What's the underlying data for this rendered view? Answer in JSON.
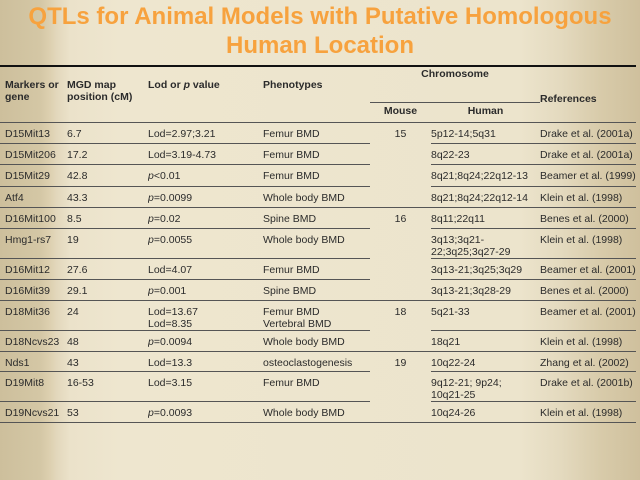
{
  "title": "QTLs for Animal Models with Putative Homologous Human Location",
  "headers": {
    "marker": "Markers or\ngene",
    "mgd": "MGD map\nposition (cM)",
    "lod_pre": "Lod or ",
    "lod_p": "p",
    "lod_post": " value",
    "phenotypes": "Phenotypes",
    "chromosome": "Chromosome",
    "mouse": "Mouse",
    "human": "Human",
    "references": "References"
  },
  "rows": [
    {
      "marker": "D15Mit13",
      "mgd": "6.7",
      "lod": "Lod=2.97;3.21",
      "p": false,
      "phenotype": "Femur BMD",
      "mouse": "15",
      "human": "5p12-14;5q31",
      "ref": "Drake et al. (2001a)"
    },
    {
      "marker": "D15Mit206",
      "mgd": "17.2",
      "lod": "Lod=3.19-4.73",
      "p": false,
      "phenotype": "Femur BMD",
      "mouse": "",
      "human": "8q22-23",
      "ref": "Drake et al. (2001a)"
    },
    {
      "marker": "D15Mit29",
      "mgd": "42.8",
      "lod": "<0.01",
      "p": true,
      "phenotype": "Femur BMD",
      "mouse": "",
      "human": "8q21;8q24;22q12-13",
      "ref": "Beamer et al. (1999)"
    },
    {
      "marker": "Atf4",
      "mgd": "43.3",
      "lod": "=0.0099",
      "p": true,
      "phenotype": "Whole body BMD",
      "mouse": "",
      "human": "8q21;8q24;22q12-14",
      "ref": "Klein et al. (1998)"
    },
    {
      "marker": "D16Mit100",
      "mgd": "8.5",
      "lod": "=0.02",
      "p": true,
      "phenotype": "Spine BMD",
      "mouse": "16",
      "human": "8q11;22q11",
      "ref": "Benes et al. (2000)"
    },
    {
      "marker": "Hmg1-rs7",
      "mgd": "19",
      "lod": "=0.0055",
      "p": true,
      "phenotype": "Whole body BMD",
      "mouse": "",
      "human": "3q13;3q21-\n22;3q25;3q27-29",
      "ref": "Klein et al. (1998)"
    },
    {
      "marker": "D16Mit12",
      "mgd": "27.6",
      "lod": "Lod=4.07",
      "p": false,
      "phenotype": "Femur BMD",
      "mouse": "",
      "human": "3q13-21;3q25;3q29",
      "ref": "Beamer et al. (2001)"
    },
    {
      "marker": "D16Mit39",
      "mgd": "29.1",
      "lod": "=0.001",
      "p": true,
      "phenotype": "Spine BMD",
      "mouse": "",
      "human": "3q13-21;3q28-29",
      "ref": "Benes et al. (2000)"
    },
    {
      "marker": "D18Mit36",
      "mgd": "24",
      "lod": "Lod=13.67\nLod=8.35",
      "p": false,
      "phenotype": "Femur BMD\nVertebral BMD",
      "mouse": "18",
      "human": "5q21-33",
      "ref": "Beamer et al. (2001)"
    },
    {
      "marker": "D18Ncvs23",
      "mgd": "48",
      "lod": "=0.0094",
      "p": true,
      "phenotype": "Whole body BMD",
      "mouse": "",
      "human": "18q21",
      "ref": "Klein et al. (1998)"
    },
    {
      "marker": "Nds1",
      "mgd": "43",
      "lod": "Lod=13.3",
      "p": false,
      "phenotype": "osteoclastogenesis",
      "mouse": "19",
      "human": "10q22-24",
      "ref": "Zhang et al. (2002)"
    },
    {
      "marker": "D19Mit8",
      "mgd": "16-53",
      "lod": "Lod=3.15",
      "p": false,
      "phenotype": "Femur BMD",
      "mouse": "",
      "human": "9q12-21; 9p24;\n10q21-25",
      "ref": "Drake et al. (2001b)"
    },
    {
      "marker": "D19Ncvs21",
      "mgd": "53",
      "lod": "=0.0093",
      "p": true,
      "phenotype": "Whole body BMD",
      "mouse": "",
      "human": "10q24-26",
      "ref": "Klein et al. (1998)"
    }
  ],
  "colors": {
    "title": "#f7a23e",
    "background": "#ece4cc"
  }
}
